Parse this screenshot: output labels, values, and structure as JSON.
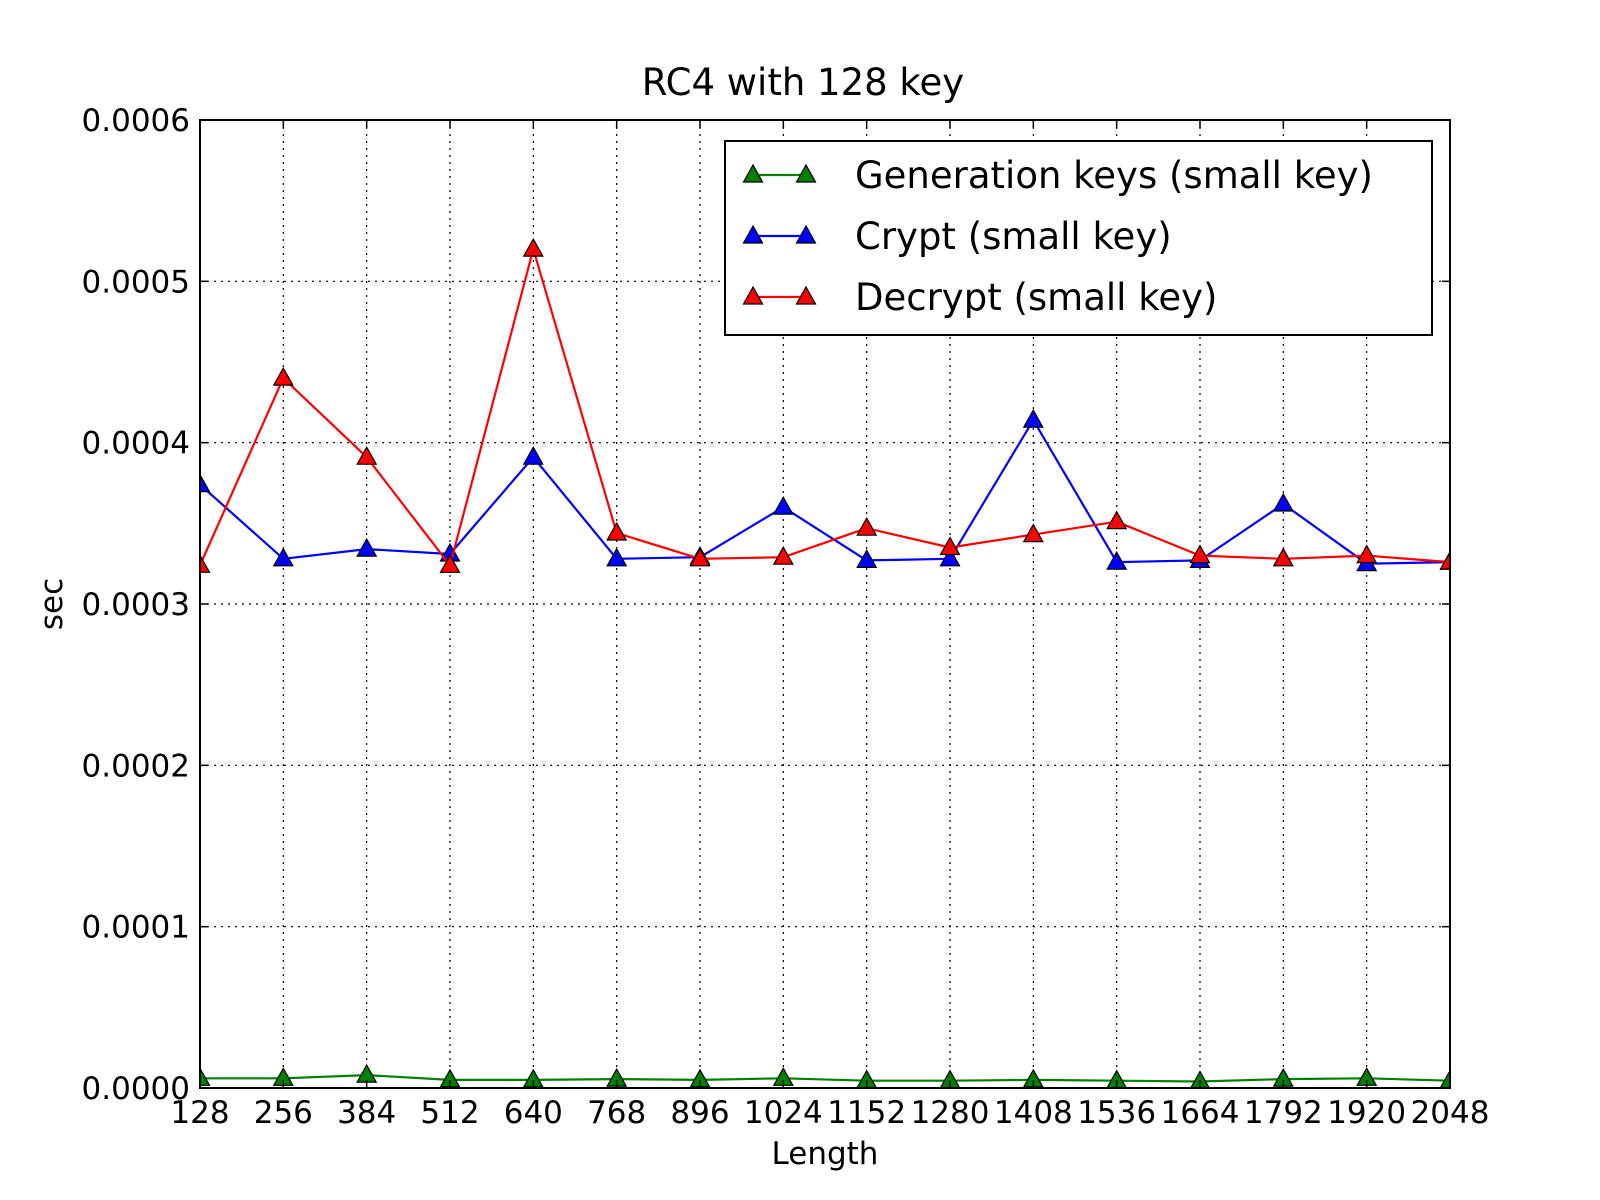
{
  "chart_data": {
    "type": "line",
    "title": "RC4 with 128 key",
    "xlabel": "Length",
    "ylabel": "sec",
    "x": [
      128,
      256,
      384,
      512,
      640,
      768,
      896,
      1024,
      1152,
      1280,
      1408,
      1536,
      1664,
      1792,
      1920,
      2048
    ],
    "xtick_labels": [
      "128",
      "256",
      "384",
      "512",
      "640",
      "768",
      "896",
      "1024",
      "1152",
      "1280",
      "1408",
      "1536",
      "1664",
      "1792",
      "1920",
      "2048"
    ],
    "ylim": [
      0,
      0.0006
    ],
    "yticks": [
      0.0,
      0.0001,
      0.0002,
      0.0003,
      0.0004,
      0.0005,
      0.0006
    ],
    "ytick_labels": [
      "0.0000",
      "0.0001",
      "0.0002",
      "0.0003",
      "0.0004",
      "0.0005",
      "0.0006"
    ],
    "grid": true,
    "legend_position": "top-right",
    "marker": "triangle",
    "series": [
      {
        "name": "Generation keys (small key)",
        "color": "#008000",
        "values": [
          6e-06,
          6e-06,
          8e-06,
          5e-06,
          5e-06,
          5.5e-06,
          5e-06,
          6e-06,
          4.5e-06,
          4.5e-06,
          5e-06,
          4.5e-06,
          4e-06,
          5.5e-06,
          6e-06,
          4.5e-06
        ]
      },
      {
        "name": "Crypt (small key)",
        "color": "#0000ff",
        "values": [
          0.000374,
          0.000328,
          0.000334,
          0.000331,
          0.000391,
          0.000328,
          0.000329,
          0.00036,
          0.000327,
          0.000328,
          0.000414,
          0.000326,
          0.000327,
          0.000362,
          0.000325,
          0.000326
        ]
      },
      {
        "name": "Decrypt (small key)",
        "color": "#ff0000",
        "values": [
          0.000324,
          0.00044,
          0.000391,
          0.000324,
          0.00052,
          0.000344,
          0.000328,
          0.000329,
          0.000347,
          0.000335,
          0.000343,
          0.000351,
          0.00033,
          0.000328,
          0.00033,
          0.000326
        ]
      }
    ]
  }
}
